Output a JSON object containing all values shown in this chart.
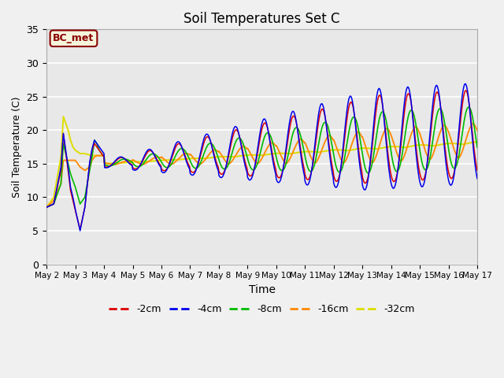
{
  "title": "Soil Temperatures Set C",
  "xlabel": "Time",
  "ylabel": "Soil Temperature (C)",
  "annotation": "BC_met",
  "ylim": [
    0,
    35
  ],
  "series_colors": {
    "-2cm": "#dd0000",
    "-4cm": "#0000ee",
    "-8cm": "#00bb00",
    "-16cm": "#ff8800",
    "-32cm": "#dddd00"
  },
  "xtick_labels": [
    "May 2",
    "May 3",
    "May 4",
    "May 5",
    "May 6",
    "May 7",
    "May 8",
    "May 9",
    "May 10",
    "May 11",
    "May 12",
    "May 13",
    "May 14",
    "May 15",
    "May 16",
    "May 17"
  ],
  "ytick_positions": [
    0,
    5,
    10,
    15,
    20,
    25,
    30,
    35
  ],
  "plot_bg": "#e8e8e8",
  "fig_bg": "#f0f0f0"
}
